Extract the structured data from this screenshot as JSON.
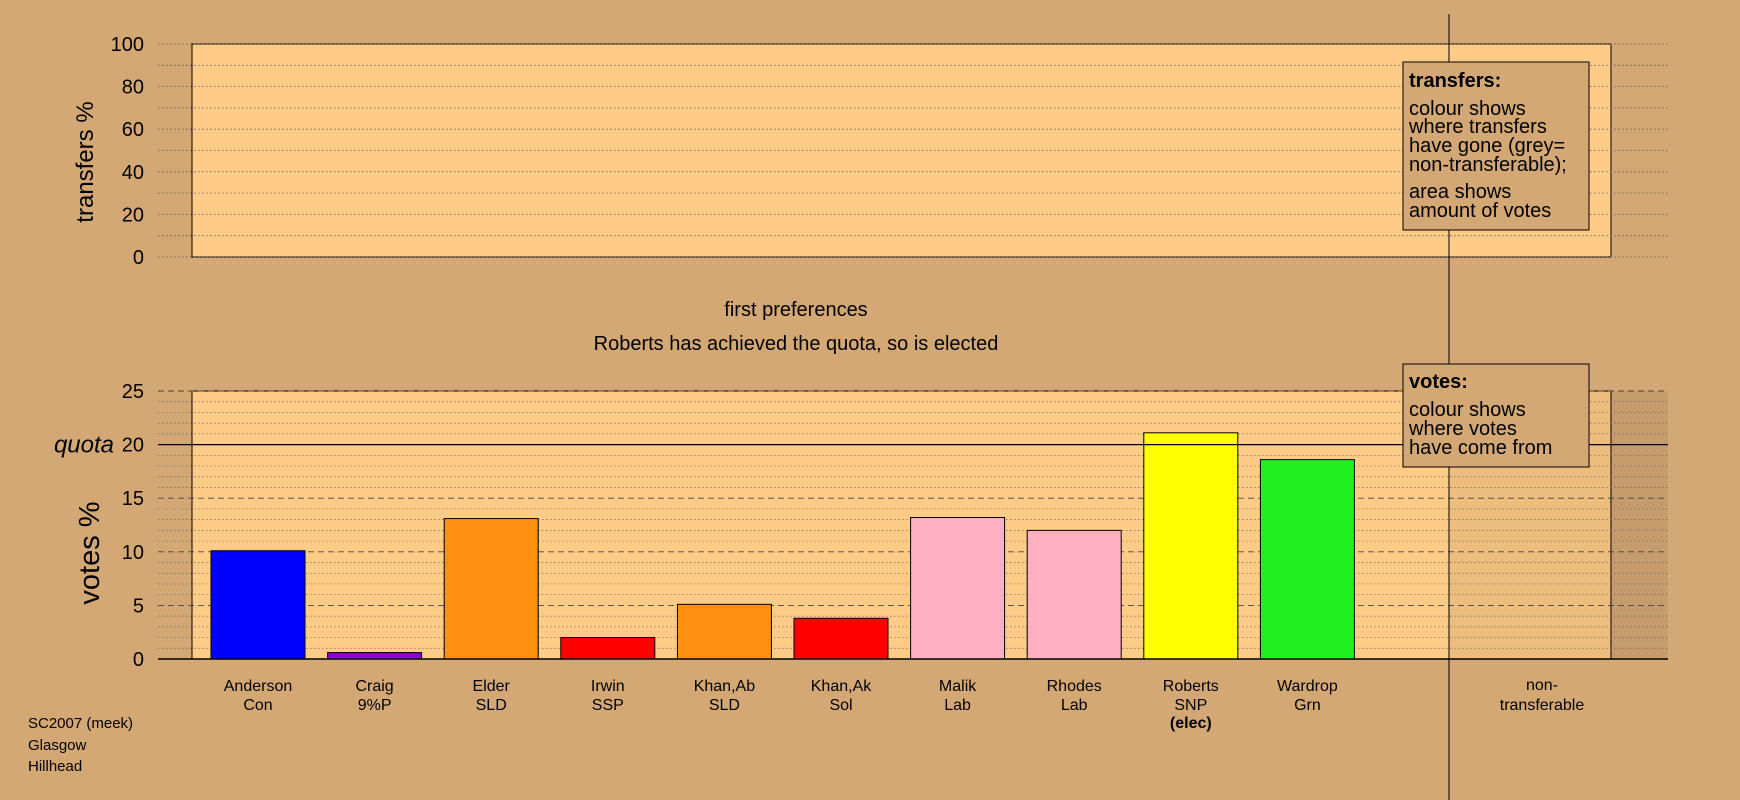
{
  "chart_data": [
    {
      "type": "bar",
      "panel": "transfers",
      "ylabel": "transfers %",
      "ylim": [
        0,
        100
      ],
      "yticks": [
        0,
        20,
        40,
        60,
        80,
        100
      ],
      "values": [],
      "legend": {
        "title": "transfers:",
        "lines": [
          "colour shows",
          "where transfers",
          "have gone (grey=",
          "non-transferable);"
        ],
        "lines2": [
          "area shows",
          "amount of votes"
        ]
      }
    },
    {
      "type": "bar",
      "panel": "votes",
      "ylabel": "votes %",
      "ylim": [
        0,
        25
      ],
      "yticks": [
        0,
        5,
        10,
        15,
        20,
        25
      ],
      "quota": 20,
      "quota_label": "quota",
      "categories": [
        {
          "name": "Anderson",
          "party": "Con",
          "value": 10.1,
          "color": "#0000ff"
        },
        {
          "name": "Craig",
          "party": "9%P",
          "value": 0.6,
          "color": "#8b00d4"
        },
        {
          "name": "Elder",
          "party": "SLD",
          "value": 13.1,
          "color": "#ff9010"
        },
        {
          "name": "Irwin",
          "party": "SSP",
          "value": 2.0,
          "color": "#ff0000"
        },
        {
          "name": "Khan,Ab",
          "party": "SLD",
          "value": 5.1,
          "color": "#ff9010"
        },
        {
          "name": "Khan,Ak",
          "party": "Sol",
          "value": 3.8,
          "color": "#ff0000"
        },
        {
          "name": "Malik",
          "party": "Lab",
          "value": 13.2,
          "color": "#ffb0c0"
        },
        {
          "name": "Rhodes",
          "party": "Lab",
          "value": 12.0,
          "color": "#ffb0c0"
        },
        {
          "name": "Roberts",
          "party": "SNP",
          "value": 21.1,
          "color": "#ffff00",
          "note": "(elec)"
        },
        {
          "name": "Wardrop",
          "party": "Grn",
          "value": 18.6,
          "color": "#20f020"
        }
      ],
      "nontransferable": {
        "line1": "non-",
        "line2": "transferable"
      },
      "legend": {
        "title": "votes:",
        "lines": [
          "colour shows",
          "where votes",
          "have come from"
        ]
      }
    }
  ],
  "stage_title": "first preferences",
  "stage_subtitle": "Roberts has achieved the quota, so is elected",
  "footer": [
    "SC2007 (meek)",
    "Glasgow",
    "Hillhead"
  ],
  "colors": {
    "background": "#d4a874",
    "plot_fill": "#ffcc88",
    "legend_fill": "#d4a874"
  }
}
